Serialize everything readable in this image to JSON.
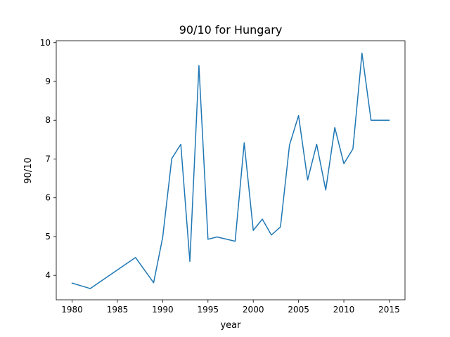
{
  "chart_data": {
    "type": "line",
    "title": "90/10 for Hungary",
    "xlabel": "year",
    "ylabel": "90/10",
    "xlim": [
      1978.25,
      2016.75
    ],
    "ylim": [
      3.37,
      10.05
    ],
    "xticks": [
      1980,
      1985,
      1990,
      1995,
      2000,
      2005,
      2010,
      2015
    ],
    "yticks": [
      4,
      5,
      6,
      7,
      8,
      9,
      10
    ],
    "grid": false,
    "series": [
      {
        "color": "#1f77b4",
        "x": [
          1980,
          1982,
          1987,
          1989,
          1990,
          1991,
          1992,
          1993,
          1994,
          1995,
          1996,
          1998,
          1999,
          2000,
          2001,
          2002,
          2003,
          2004,
          2005,
          2006,
          2007,
          2008,
          2009,
          2010,
          2011,
          2012,
          2013,
          2015
        ],
        "y": [
          3.8,
          3.66,
          4.46,
          3.81,
          4.98,
          7.01,
          7.38,
          4.36,
          9.41,
          4.93,
          4.99,
          4.88,
          7.42,
          5.16,
          5.45,
          5.04,
          5.25,
          7.36,
          8.12,
          6.46,
          7.38,
          6.2,
          7.81,
          6.88,
          7.26,
          9.73,
          8.0,
          8.0
        ]
      }
    ]
  }
}
